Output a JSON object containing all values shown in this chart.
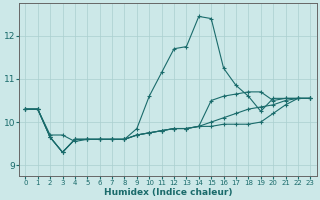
{
  "xlabel": "Humidex (Indice chaleur)",
  "background_color": "#cce8e8",
  "grid_color": "#aacfcf",
  "line_color": "#1a6b6b",
  "xlim": [
    -0.5,
    23.5
  ],
  "ylim": [
    8.75,
    12.75
  ],
  "xticks": [
    0,
    1,
    2,
    3,
    4,
    5,
    6,
    7,
    8,
    9,
    10,
    11,
    12,
    13,
    14,
    15,
    16,
    17,
    18,
    19,
    20,
    21,
    22,
    23
  ],
  "yticks": [
    9,
    10,
    11,
    12
  ],
  "lines": [
    [
      10.3,
      10.3,
      9.7,
      9.7,
      9.55,
      9.6,
      9.6,
      9.6,
      9.6,
      9.85,
      10.6,
      11.15,
      11.7,
      11.75,
      12.45,
      12.4,
      11.25,
      10.85,
      10.6,
      10.25,
      10.55,
      10.55,
      10.55,
      10.55
    ],
    [
      10.3,
      10.3,
      9.65,
      9.3,
      9.6,
      9.6,
      9.6,
      9.6,
      9.6,
      9.7,
      9.75,
      9.8,
      9.85,
      9.85,
      9.9,
      10.5,
      10.6,
      10.65,
      10.7,
      10.7,
      10.5,
      10.55,
      10.55,
      10.55
    ],
    [
      10.3,
      10.3,
      9.65,
      9.3,
      9.6,
      9.6,
      9.6,
      9.6,
      9.6,
      9.7,
      9.75,
      9.8,
      9.85,
      9.85,
      9.9,
      10.0,
      10.1,
      10.2,
      10.3,
      10.35,
      10.4,
      10.5,
      10.55,
      10.55
    ],
    [
      10.3,
      10.3,
      9.65,
      9.3,
      9.6,
      9.6,
      9.6,
      9.6,
      9.6,
      9.7,
      9.75,
      9.8,
      9.85,
      9.85,
      9.9,
      9.9,
      9.95,
      9.95,
      9.95,
      10.0,
      10.2,
      10.4,
      10.55,
      10.55
    ]
  ]
}
